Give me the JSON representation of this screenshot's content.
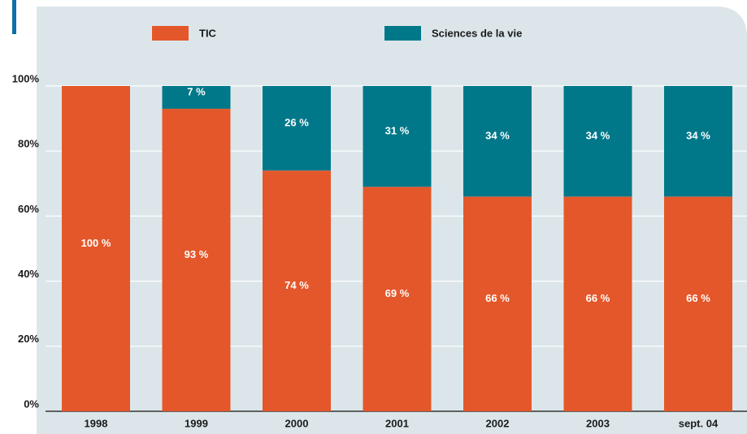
{
  "chart_data": {
    "type": "stacked_bar",
    "categories": [
      "1998",
      "1999",
      "2000",
      "2001",
      "2002",
      "2003",
      "sept. 04"
    ],
    "series": [
      {
        "name": "TIC",
        "color": "#e4572a",
        "values": [
          100,
          93,
          74,
          69,
          66,
          66,
          66
        ],
        "value_labels": [
          "100 %",
          "93 %",
          "74 %",
          "69 %",
          "66 %",
          "66 %",
          "66 %"
        ]
      },
      {
        "name": "Sciences de la vie",
        "color": "#00788a",
        "values": [
          0,
          7,
          26,
          31,
          34,
          34,
          34
        ],
        "value_labels": [
          null,
          "7 %",
          "26 %",
          "31 %",
          "34 %",
          "34 %",
          "34 %"
        ]
      }
    ],
    "ylim": [
      0,
      100
    ],
    "yticks": [
      {
        "value": 0,
        "label": "0%"
      },
      {
        "value": 20,
        "label": "20%"
      },
      {
        "value": 40,
        "label": "40%"
      },
      {
        "value": 60,
        "label": "60%"
      },
      {
        "value": 80,
        "label": "80%"
      },
      {
        "value": 100,
        "label": "100%"
      }
    ],
    "grid": true,
    "legend": "top"
  }
}
